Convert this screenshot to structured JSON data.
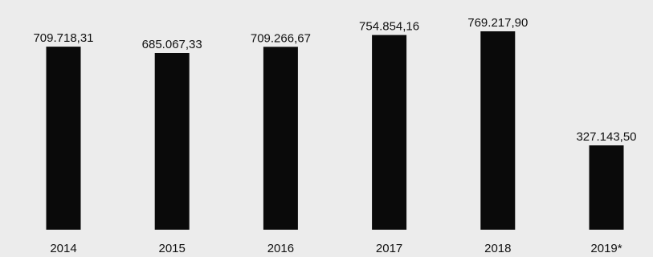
{
  "chart_data": {
    "type": "bar",
    "categories": [
      "2014",
      "2015",
      "2016",
      "2017",
      "2018",
      "2019*"
    ],
    "values": [
      709718.31,
      685067.33,
      709266.67,
      754854.16,
      769217.9,
      327143.5
    ],
    "value_labels": [
      "709.718,31",
      "685.067,33",
      "709.266,67",
      "754.854,16",
      "769.217,90",
      "327.143,50"
    ],
    "ylim": [
      0,
      769217.9
    ],
    "grid": false,
    "bar_color": "#0a0a0a"
  }
}
